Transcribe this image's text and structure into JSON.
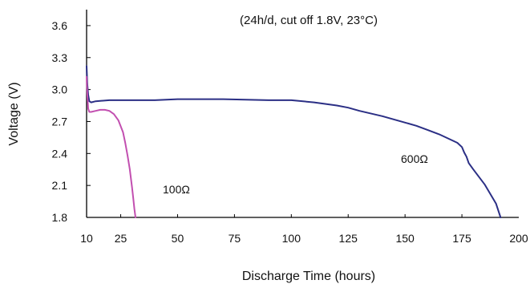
{
  "chart_data": {
    "type": "line",
    "title": "",
    "annotation": "(24h/d, cut off 1.8V, 23°C)",
    "xlabel": "Discharge Time (hours)",
    "ylabel": "Voltage (V)",
    "xlim": [
      10,
      200
    ],
    "ylim": [
      1.8,
      3.75
    ],
    "x_ticks": [
      10,
      25,
      50,
      75,
      100,
      125,
      150,
      175,
      200
    ],
    "y_ticks": [
      1.8,
      2.1,
      2.4,
      2.7,
      3.0,
      3.3,
      3.6
    ],
    "y_tick_labels": [
      "1.8",
      "2.1",
      "2.4",
      "2.7",
      "3.0",
      "3.3",
      "3.6"
    ],
    "grid": false,
    "legend": "none",
    "series": [
      {
        "name": "600Ω",
        "color": "#2b2f85",
        "x": [
          10,
          10.3,
          10.7,
          11.2,
          12,
          14,
          20,
          30,
          40,
          50,
          60,
          70,
          80,
          90,
          100,
          110,
          120,
          125,
          130,
          140,
          150,
          155,
          160,
          165,
          170,
          173,
          175,
          176,
          177,
          178,
          180,
          185,
          190,
          192
        ],
        "y": [
          3.22,
          3.05,
          2.95,
          2.89,
          2.88,
          2.89,
          2.9,
          2.9,
          2.9,
          2.91,
          2.91,
          2.91,
          2.905,
          2.9,
          2.9,
          2.88,
          2.85,
          2.83,
          2.8,
          2.75,
          2.69,
          2.66,
          2.62,
          2.58,
          2.53,
          2.5,
          2.46,
          2.41,
          2.37,
          2.31,
          2.25,
          2.11,
          1.93,
          1.8
        ]
      },
      {
        "name": "100Ω",
        "color": "#c24fb0",
        "x": [
          10,
          10.3,
          10.7,
          11.2,
          12,
          14,
          16,
          18,
          20,
          22,
          24,
          26,
          27,
          28,
          29,
          30,
          30.5,
          31,
          31.5
        ],
        "y": [
          3.12,
          2.95,
          2.82,
          2.79,
          2.79,
          2.8,
          2.81,
          2.81,
          2.8,
          2.77,
          2.71,
          2.6,
          2.5,
          2.38,
          2.25,
          2.08,
          1.98,
          1.88,
          1.8
        ]
      }
    ]
  }
}
